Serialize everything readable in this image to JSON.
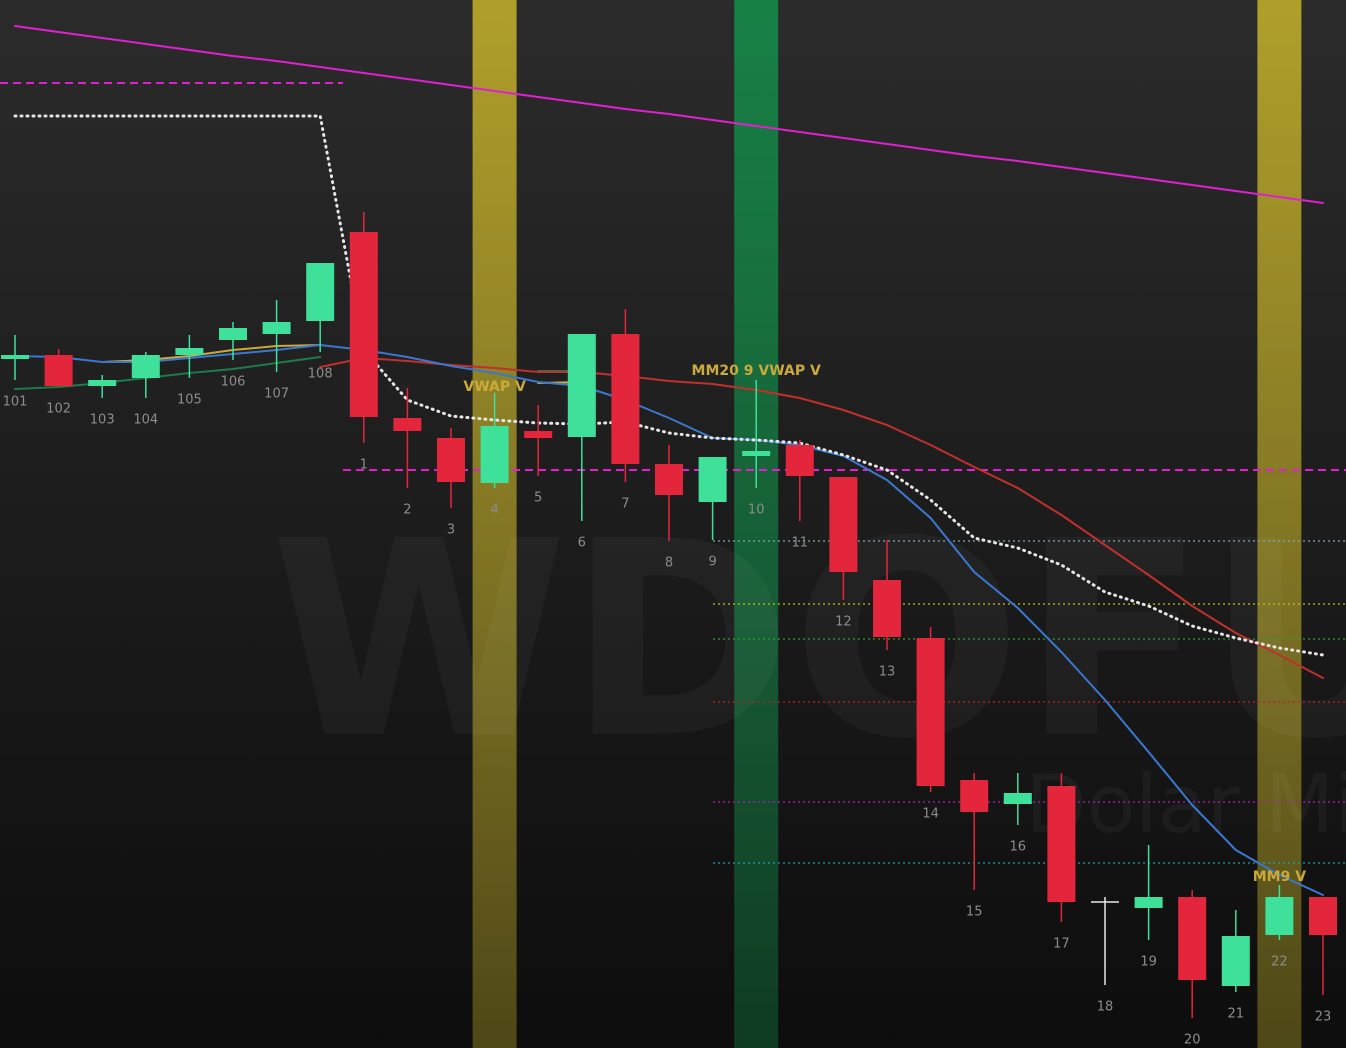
{
  "chart_data": {
    "type": "candlestick",
    "watermark": "WDOFUT",
    "watermark_subtitle": "Dolar Mini",
    "ylim": [
      0,
      104.8
    ],
    "up_color": "#3ee09a",
    "down_color": "#e3263c",
    "doji_color": "#e8e8e8",
    "categories": [
      "101",
      "102",
      "103",
      "104",
      "105",
      "106",
      "107",
      "108",
      "1",
      "2",
      "3",
      "4",
      "5",
      "6",
      "7",
      "8",
      "9",
      "10",
      "11",
      "12",
      "13",
      "14",
      "15",
      "16",
      "17",
      "18",
      "19",
      "20",
      "21",
      "22",
      "23"
    ],
    "open": [
      68.9,
      69.3,
      66.2,
      67.0,
      69.3,
      70.8,
      71.4,
      72.7,
      81.6,
      63.0,
      61.0,
      56.5,
      61.7,
      61.1,
      71.4,
      58.4,
      54.6,
      59.2,
      60.3,
      57.1,
      46.8,
      41.0,
      26.8,
      24.4,
      26.2,
      14.6,
      14.0,
      15.1,
      6.2,
      11.3,
      15.1
    ],
    "high": [
      71.3,
      69.9,
      67.3,
      69.6,
      71.3,
      72.6,
      74.8,
      78.5,
      83.6,
      66.0,
      62.0,
      65.5,
      64.3,
      71.4,
      73.9,
      60.3,
      59.1,
      66.8,
      60.8,
      57.1,
      50.8,
      42.1,
      27.5,
      27.5,
      27.5,
      15.1,
      20.3,
      15.8,
      13.8,
      16.3,
      15.1
    ],
    "low": [
      66.8,
      66.1,
      65.0,
      65.0,
      67.0,
      68.8,
      67.6,
      69.6,
      60.5,
      56.0,
      54.0,
      56.0,
      57.2,
      52.7,
      56.6,
      50.7,
      50.8,
      56.0,
      52.7,
      44.8,
      39.8,
      25.6,
      15.8,
      22.3,
      12.6,
      6.3,
      10.8,
      3.0,
      5.6,
      10.8,
      5.3
    ],
    "close": [
      69.3,
      66.2,
      66.8,
      69.3,
      70.0,
      72.0,
      72.6,
      78.5,
      63.1,
      61.7,
      56.6,
      62.2,
      61.0,
      71.4,
      58.4,
      55.3,
      59.1,
      59.7,
      57.2,
      47.6,
      41.1,
      26.2,
      23.6,
      25.5,
      14.6,
      14.6,
      15.1,
      6.8,
      11.2,
      15.1,
      11.3
    ],
    "series": [
      {
        "color": "#e020d0",
        "style": "solid",
        "values": [
          102.2,
          101.6,
          101.0,
          100.4,
          99.8,
          99.2,
          98.7,
          98.1,
          97.5,
          96.9,
          96.3,
          95.7,
          95.1,
          94.5,
          93.9,
          93.4,
          92.8,
          92.2,
          91.6,
          91.0,
          90.4,
          89.8,
          89.2,
          88.7,
          88.1,
          87.5,
          86.9,
          86.3,
          85.7,
          85.1,
          84.5
        ]
      },
      {
        "color": "#1f7a4a",
        "style": "solid",
        "values": [
          65.9,
          66.1,
          66.5,
          67.0,
          67.5,
          67.9,
          68.5,
          69.1,
          null,
          null,
          null,
          null,
          67.7,
          67.7,
          null,
          null,
          null,
          null,
          null,
          null,
          null,
          null,
          null,
          null,
          null,
          null,
          null,
          null,
          null,
          null,
          null
        ]
      },
      {
        "color": "#c9aa3a",
        "style": "solid",
        "values": [
          null,
          null,
          68.6,
          68.8,
          69.2,
          69.8,
          70.2,
          70.3,
          null,
          null,
          null,
          null,
          66.5,
          66.6,
          null,
          null,
          null,
          null,
          null,
          null,
          null,
          null,
          null,
          null,
          null,
          null,
          null,
          null,
          null,
          null,
          null
        ]
      },
      {
        "color": "#c0302c",
        "style": "solid",
        "values": [
          null,
          null,
          null,
          null,
          null,
          null,
          null,
          68.1,
          69.0,
          68.7,
          68.3,
          68.0,
          67.6,
          67.6,
          67.2,
          66.7,
          66.4,
          65.8,
          65.0,
          63.8,
          62.3,
          60.3,
          58.1,
          56.0,
          53.3,
          50.3,
          47.3,
          44.2,
          41.5,
          39.3,
          37.0
        ]
      },
      {
        "color": "#3a78d0",
        "style": "solid",
        "values": [
          69.2,
          69.1,
          68.6,
          68.6,
          69.0,
          69.4,
          69.8,
          70.3,
          69.8,
          69.1,
          68.2,
          67.5,
          66.6,
          66.2,
          64.8,
          63.0,
          61.0,
          60.8,
          60.3,
          59.2,
          56.8,
          53.0,
          47.6,
          44.0,
          39.6,
          34.8,
          29.6,
          24.3,
          19.8,
          17.3,
          15.3
        ]
      },
      {
        "color": "#e6e6e6",
        "style": "dotted",
        "values": [
          93.2,
          93.2,
          93.2,
          93.2,
          93.2,
          93.2,
          93.2,
          93.2,
          69.8,
          64.8,
          63.2,
          62.8,
          62.5,
          62.4,
          62.6,
          61.5,
          61.0,
          60.8,
          60.5,
          59.3,
          57.8,
          54.8,
          51.0,
          50.0,
          48.3,
          45.6,
          44.2,
          42.2,
          41.0,
          40.0,
          39.3
        ]
      }
    ],
    "levels": [
      {
        "value": 96.5,
        "color": "#e020d0",
        "style": "dashed"
      },
      {
        "value": 57.8,
        "color": "#e020d0",
        "style": "dashed"
      },
      {
        "value": 50.7,
        "color": "#7fa8b0",
        "style": "dotted"
      },
      {
        "value": 44.4,
        "color": "#c8c020",
        "style": "dotted"
      },
      {
        "value": 40.9,
        "color": "#30a030",
        "style": "dotted"
      },
      {
        "value": 34.6,
        "color": "#c02020",
        "style": "dotted"
      },
      {
        "value": 24.6,
        "color": "#b020b0",
        "style": "dotted"
      },
      {
        "value": 18.5,
        "color": "#20a0b0",
        "style": "dotted"
      }
    ],
    "bands": [
      {
        "index": 11,
        "color": "#c8b42a"
      },
      {
        "index": 17,
        "color": "#13904a"
      },
      {
        "index": 29,
        "color": "#c8b42a"
      }
    ],
    "annotations": [
      {
        "text": "VWAP V",
        "index": 11,
        "value": 66.1
      },
      {
        "text": "MM20 9 VWAP V",
        "index": 17,
        "value": 67.7
      },
      {
        "text": "MM9 V",
        "index": 29,
        "value": 17.1
      }
    ]
  }
}
